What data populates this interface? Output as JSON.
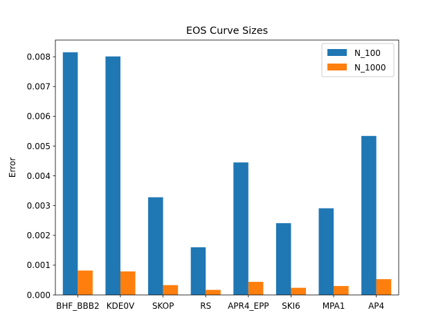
{
  "chart_data": {
    "type": "bar",
    "title": "EOS Curve Sizes",
    "xlabel": "",
    "ylabel": "Error",
    "categories": [
      "BHF_BBB2",
      "KDE0V",
      "SKOP",
      "RS",
      "APR4_EPP",
      "SKI6",
      "MPA1",
      "AP4"
    ],
    "series": [
      {
        "name": "N_100",
        "color": "#1f77b4",
        "values": [
          0.00815,
          0.00801,
          0.00328,
          0.0016,
          0.00445,
          0.00241,
          0.00291,
          0.00534
        ]
      },
      {
        "name": "N_1000",
        "color": "#ff7f0e",
        "values": [
          0.00082,
          0.00079,
          0.00033,
          0.00017,
          0.00044,
          0.00024,
          0.0003,
          0.00053
        ]
      }
    ],
    "ylim": [
      0,
      0.00856
    ],
    "yticks": [
      {
        "value": 0.0,
        "label": "0.000"
      },
      {
        "value": 0.001,
        "label": "0.001"
      },
      {
        "value": 0.002,
        "label": "0.002"
      },
      {
        "value": 0.003,
        "label": "0.003"
      },
      {
        "value": 0.004,
        "label": "0.004"
      },
      {
        "value": 0.005,
        "label": "0.005"
      },
      {
        "value": 0.006,
        "label": "0.006"
      },
      {
        "value": 0.007,
        "label": "0.007"
      },
      {
        "value": 0.008,
        "label": "0.008"
      }
    ],
    "grid": false,
    "legend_position": "top-right"
  }
}
